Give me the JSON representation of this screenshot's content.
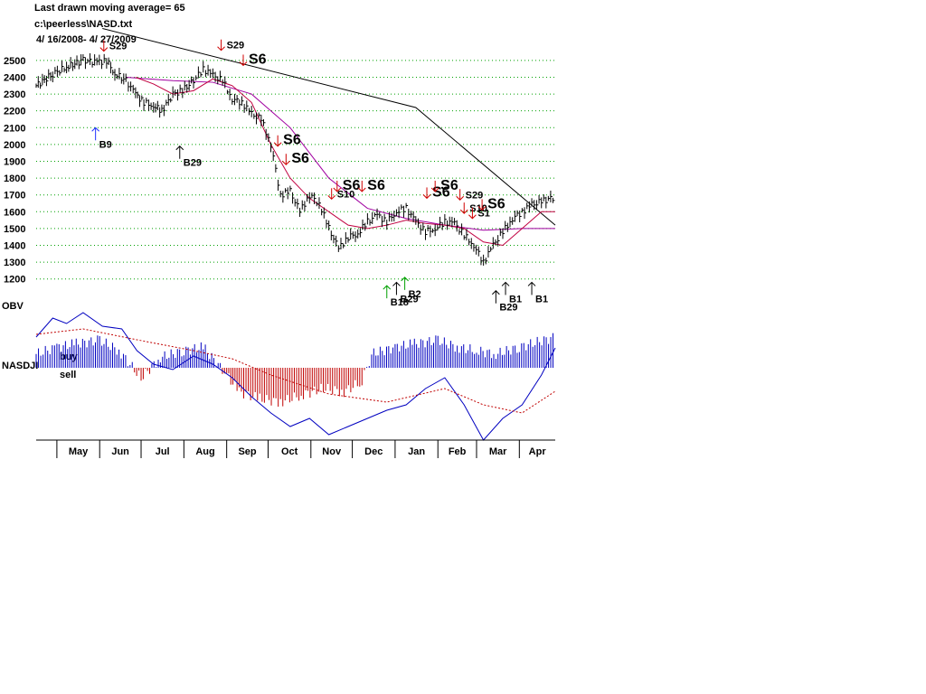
{
  "header": {
    "line1": "Last drawn moving average= 65",
    "line2": "c:\\peerless\\NASD.txt",
    "line3": " 4/ 16/2008- 4/ 27/2009"
  },
  "panel_labels": {
    "obv": "OBV",
    "buy": "buy",
    "sell": "sell",
    "nasdji": "NASDJI"
  },
  "colors": {
    "price_bars": "#000000",
    "grid": "#00a000",
    "ma_short": "#c00040",
    "ma_long": "#a000a0",
    "obv_line": "#0000c0",
    "buy_bars": "#0000c0",
    "sell_bars": "#c00000",
    "sell_signal": "#d00000",
    "buy_signal": "#000000",
    "blue_signal": "#2030ff",
    "green_signal": "#00a000"
  },
  "chart_data": {
    "type": "line",
    "title": "Last drawn moving average= 65",
    "ylim": [
      1150,
      2580
    ],
    "y_ticks": [
      1200,
      1300,
      1400,
      1500,
      1600,
      1700,
      1800,
      1900,
      2000,
      2100,
      2200,
      2300,
      2400,
      2500
    ],
    "x_months": [
      "May",
      "Jun",
      "Jul",
      "Aug",
      "Sep",
      "Oct",
      "Nov",
      "Dec",
      "Jan",
      "Feb",
      "Mar",
      "Apr"
    ],
    "date_range": [
      "2008-04-16",
      "2009-04-27"
    ],
    "grid": "horizontal",
    "series": [
      {
        "style": "price_bars",
        "values": [
          [
            "2008-04-16",
            2350
          ],
          [
            "2008-04-28",
            2420
          ],
          [
            "2008-05-08",
            2460
          ],
          [
            "2008-05-20",
            2500
          ],
          [
            "2008-05-30",
            2490
          ],
          [
            "2008-06-06",
            2500
          ],
          [
            "2008-06-12",
            2420
          ],
          [
            "2008-06-20",
            2380
          ],
          [
            "2008-06-27",
            2300
          ],
          [
            "2008-07-03",
            2250
          ],
          [
            "2008-07-10",
            2230
          ],
          [
            "2008-07-16",
            2200
          ],
          [
            "2008-07-24",
            2300
          ],
          [
            "2008-07-31",
            2320
          ],
          [
            "2008-08-08",
            2380
          ],
          [
            "2008-08-15",
            2450
          ],
          [
            "2008-08-22",
            2410
          ],
          [
            "2008-08-29",
            2380
          ],
          [
            "2008-09-05",
            2270
          ],
          [
            "2008-09-12",
            2250
          ],
          [
            "2008-09-19",
            2180
          ],
          [
            "2008-09-26",
            2150
          ],
          [
            "2008-10-03",
            2000
          ],
          [
            "2008-10-10",
            1700
          ],
          [
            "2008-10-17",
            1720
          ],
          [
            "2008-10-24",
            1600
          ],
          [
            "2008-10-31",
            1700
          ],
          [
            "2008-11-07",
            1650
          ],
          [
            "2008-11-14",
            1500
          ],
          [
            "2008-11-21",
            1380
          ],
          [
            "2008-11-28",
            1450
          ],
          [
            "2008-12-05",
            1470
          ],
          [
            "2008-12-12",
            1540
          ],
          [
            "2008-12-19",
            1580
          ],
          [
            "2008-12-26",
            1540
          ],
          [
            "2009-01-02",
            1600
          ],
          [
            "2009-01-09",
            1620
          ],
          [
            "2009-01-16",
            1540
          ],
          [
            "2009-01-23",
            1480
          ],
          [
            "2009-01-30",
            1500
          ],
          [
            "2009-02-06",
            1540
          ],
          [
            "2009-02-13",
            1530
          ],
          [
            "2009-02-20",
            1460
          ],
          [
            "2009-02-27",
            1400
          ],
          [
            "2009-03-06",
            1300
          ],
          [
            "2009-03-13",
            1400
          ],
          [
            "2009-03-20",
            1480
          ],
          [
            "2009-03-27",
            1560
          ],
          [
            "2009-04-03",
            1600
          ],
          [
            "2009-04-10",
            1640
          ],
          [
            "2009-04-17",
            1660
          ],
          [
            "2009-04-27",
            1690
          ]
        ]
      },
      {
        "style": "ma_short",
        "values": [
          [
            "2008-06-27",
            2400
          ],
          [
            "2008-07-10",
            2360
          ],
          [
            "2008-07-24",
            2300
          ],
          [
            "2008-08-08",
            2320
          ],
          [
            "2008-08-22",
            2390
          ],
          [
            "2008-09-05",
            2350
          ],
          [
            "2008-09-19",
            2250
          ],
          [
            "2008-10-03",
            2000
          ],
          [
            "2008-10-17",
            1800
          ],
          [
            "2008-10-31",
            1680
          ],
          [
            "2008-11-14",
            1600
          ],
          [
            "2008-11-28",
            1520
          ],
          [
            "2008-12-12",
            1500
          ],
          [
            "2008-12-26",
            1520
          ],
          [
            "2009-01-09",
            1550
          ],
          [
            "2009-01-23",
            1530
          ],
          [
            "2009-02-06",
            1520
          ],
          [
            "2009-02-20",
            1500
          ],
          [
            "2009-03-06",
            1420
          ],
          [
            "2009-03-20",
            1400
          ],
          [
            "2009-04-03",
            1500
          ],
          [
            "2009-04-17",
            1600
          ],
          [
            "2009-04-27",
            1600
          ]
        ]
      },
      {
        "style": "ma_long",
        "values": [
          [
            "2008-06-20",
            2400
          ],
          [
            "2008-07-24",
            2380
          ],
          [
            "2008-08-22",
            2370
          ],
          [
            "2008-09-19",
            2300
          ],
          [
            "2008-10-17",
            2100
          ],
          [
            "2008-11-14",
            1800
          ],
          [
            "2008-12-12",
            1620
          ],
          [
            "2009-01-09",
            1560
          ],
          [
            "2009-02-06",
            1520
          ],
          [
            "2009-03-06",
            1490
          ],
          [
            "2009-04-03",
            1500
          ],
          [
            "2009-04-27",
            1500
          ]
        ]
      },
      {
        "style": "trendline",
        "values": [
          [
            "2008-06-03",
            2690
          ],
          [
            "2009-01-16",
            2220
          ],
          [
            "2009-04-27",
            1520
          ]
        ]
      }
    ],
    "signals": [
      {
        "label": "S29",
        "date": "2008-06-04",
        "y": 2555,
        "type": "sell",
        "arrow": "down",
        "big": false
      },
      {
        "label": "S29",
        "date": "2008-08-28",
        "y": 2560,
        "type": "sell",
        "arrow": "down",
        "big": false
      },
      {
        "label": "S6",
        "date": "2008-09-13",
        "y": 2470,
        "type": "sell",
        "arrow": "down",
        "big": true
      },
      {
        "label": "S6",
        "date": "2008-10-08",
        "y": 1990,
        "type": "sell",
        "arrow": "down",
        "big": true
      },
      {
        "label": "S6",
        "date": "2008-10-14",
        "y": 1880,
        "type": "sell",
        "arrow": "down",
        "big": true
      },
      {
        "label": "S10",
        "date": "2008-11-16",
        "y": 1675,
        "type": "sell",
        "arrow": "down",
        "big": false
      },
      {
        "label": "S6",
        "date": "2008-11-20",
        "y": 1720,
        "type": "sell",
        "arrow": "down",
        "big": true
      },
      {
        "label": "S6",
        "date": "2008-12-08",
        "y": 1720,
        "type": "sell",
        "arrow": "down",
        "big": true
      },
      {
        "label": "S6",
        "date": "2009-01-24",
        "y": 1680,
        "type": "sell",
        "arrow": "down",
        "big": true
      },
      {
        "label": "S6",
        "date": "2009-01-30",
        "y": 1720,
        "type": "sell",
        "arrow": "down",
        "big": true
      },
      {
        "label": "S29",
        "date": "2009-02-17",
        "y": 1670,
        "type": "sell",
        "arrow": "down",
        "big": false
      },
      {
        "label": "S10",
        "date": "2009-02-20",
        "y": 1590,
        "type": "sell",
        "arrow": "down",
        "big": false
      },
      {
        "label": "S1",
        "date": "2009-02-26",
        "y": 1560,
        "type": "sell",
        "arrow": "down",
        "big": false
      },
      {
        "label": "S6",
        "date": "2009-03-05",
        "y": 1610,
        "type": "sell",
        "arrow": "down",
        "big": true
      },
      {
        "label": "B9",
        "date": "2008-05-29",
        "y": 2100,
        "type": "blue",
        "arrow": "up",
        "big": false
      },
      {
        "label": "B29",
        "date": "2008-07-29",
        "y": 1990,
        "type": "buy",
        "arrow": "up",
        "big": false
      },
      {
        "label": "B29",
        "date": "2009-01-02",
        "y": 1180,
        "type": "buy",
        "arrow": "up",
        "big": false
      },
      {
        "label": "B18",
        "date": "2008-12-26",
        "y": 1160,
        "type": "green",
        "arrow": "up",
        "big": false
      },
      {
        "label": "B2",
        "date": "2009-01-08",
        "y": 1210,
        "type": "green",
        "arrow": "up",
        "big": false
      },
      {
        "label": "B29",
        "date": "2009-03-15",
        "y": 1130,
        "type": "buy",
        "arrow": "up",
        "big": false
      },
      {
        "label": "B1",
        "date": "2009-03-22",
        "y": 1180,
        "type": "buy",
        "arrow": "up",
        "big": false
      },
      {
        "label": "B1",
        "date": "2009-04-10",
        "y": 1180,
        "type": "buy",
        "arrow": "up",
        "big": false
      }
    ],
    "obv": {
      "type": "line",
      "values": [
        [
          "2008-04-16",
          78
        ],
        [
          "2008-04-28",
          92
        ],
        [
          "2008-05-08",
          88
        ],
        [
          "2008-05-20",
          96
        ],
        [
          "2008-06-03",
          86
        ],
        [
          "2008-06-17",
          84
        ],
        [
          "2008-06-28",
          68
        ],
        [
          "2008-07-10",
          58
        ],
        [
          "2008-07-24",
          54
        ],
        [
          "2008-08-08",
          64
        ],
        [
          "2008-08-22",
          58
        ],
        [
          "2008-09-05",
          48
        ],
        [
          "2008-09-19",
          34
        ],
        [
          "2008-10-03",
          22
        ],
        [
          "2008-10-17",
          12
        ],
        [
          "2008-10-31",
          18
        ],
        [
          "2008-11-14",
          6
        ],
        [
          "2008-11-28",
          12
        ],
        [
          "2008-12-12",
          18
        ],
        [
          "2008-12-26",
          24
        ],
        [
          "2009-01-09",
          28
        ],
        [
          "2009-01-23",
          40
        ],
        [
          "2009-02-06",
          48
        ],
        [
          "2009-02-20",
          28
        ],
        [
          "2009-03-06",
          2
        ],
        [
          "2009-03-20",
          18
        ],
        [
          "2009-04-03",
          28
        ],
        [
          "2009-04-17",
          50
        ],
        [
          "2009-04-27",
          70
        ]
      ],
      "signal_line_values": [
        [
          "2008-04-16",
          80
        ],
        [
          "2008-05-20",
          84
        ],
        [
          "2008-06-28",
          76
        ],
        [
          "2008-08-08",
          68
        ],
        [
          "2008-09-05",
          62
        ],
        [
          "2008-10-03",
          50
        ],
        [
          "2008-11-14",
          36
        ],
        [
          "2008-12-26",
          30
        ],
        [
          "2009-02-06",
          40
        ],
        [
          "2009-03-06",
          28
        ],
        [
          "2009-04-03",
          22
        ],
        [
          "2009-04-27",
          38
        ]
      ]
    },
    "nasdji": {
      "type": "bar",
      "note_labels": [
        "buy",
        "sell"
      ],
      "values": [
        [
          "2008-04-16",
          0.4
        ],
        [
          "2008-05-01",
          0.6
        ],
        [
          "2008-05-15",
          0.7
        ],
        [
          "2008-06-01",
          0.8
        ],
        [
          "2008-06-15",
          0.5
        ],
        [
          "2008-07-01",
          -0.3
        ],
        [
          "2008-07-15",
          0.3
        ],
        [
          "2008-08-01",
          0.5
        ],
        [
          "2008-08-15",
          0.6
        ],
        [
          "2008-09-01",
          -0.2
        ],
        [
          "2008-09-10",
          -0.7
        ],
        [
          "2008-09-25",
          -0.9
        ],
        [
          "2008-10-10",
          -1.0
        ],
        [
          "2008-10-25",
          -0.8
        ],
        [
          "2008-11-10",
          -0.6
        ],
        [
          "2008-11-25",
          -0.7
        ],
        [
          "2008-12-08",
          -0.4
        ],
        [
          "2008-12-15",
          0.4
        ],
        [
          "2009-01-01",
          0.6
        ],
        [
          "2009-01-15",
          0.7
        ],
        [
          "2009-02-01",
          0.8
        ],
        [
          "2009-02-15",
          0.6
        ],
        [
          "2009-03-01",
          0.5
        ],
        [
          "2009-03-15",
          0.4
        ],
        [
          "2009-04-01",
          0.6
        ],
        [
          "2009-04-27",
          0.9
        ]
      ]
    }
  }
}
